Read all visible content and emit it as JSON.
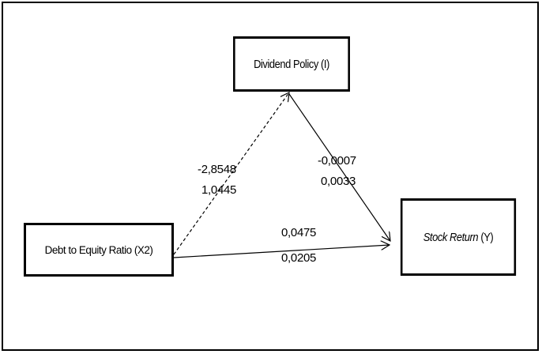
{
  "nodes": {
    "dividend_policy": "Dividend Policy (I)",
    "debt_to_equity": "Debt to Equity Ratio (X2)",
    "stock_return_name": "Stock Return",
    "stock_return_code": " (Y)"
  },
  "paths": {
    "x2_to_i": {
      "line1": "-2,8548",
      "line2": "1,0445"
    },
    "i_to_y": {
      "line1": "-0,0007",
      "line2": "0,0033"
    },
    "x2_to_y": {
      "line1": "0,0475",
      "line2": "0,0205"
    }
  }
}
